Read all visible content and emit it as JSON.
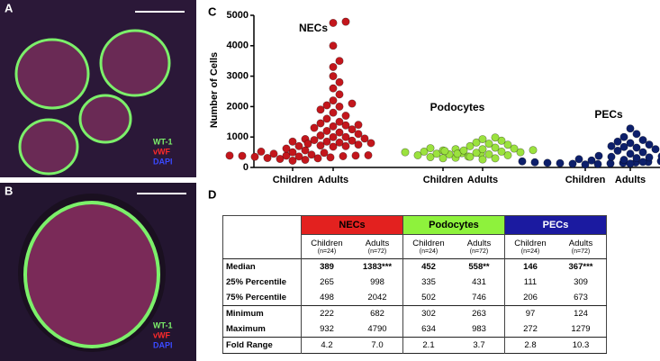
{
  "panels": [
    {
      "label": "A",
      "legend": [
        "WT-1",
        "vWF",
        "DAPI"
      ]
    },
    {
      "label": "B",
      "legend": [
        "WT-1",
        "vWF",
        "DAPI"
      ]
    }
  ],
  "chart_data": {
    "panel_label": "C",
    "type": "strip",
    "y_label": "Number of Cells",
    "categories": [
      "Children",
      "Adults"
    ],
    "ylim": [
      0,
      5000
    ],
    "yticks": [
      0,
      1000,
      2000,
      3000,
      4000,
      5000
    ],
    "series": [
      {
        "name": "NECs",
        "color": "#c3161c",
        "values": [
          [
            222,
            250,
            280,
            300,
            310,
            330,
            350,
            360,
            370,
            380,
            385,
            389,
            389,
            400,
            420,
            450,
            480,
            500,
            520,
            560,
            620,
            700,
            850,
            932
          ],
          [
            682,
            700,
            720,
            750,
            780,
            800,
            820,
            850,
            880,
            900,
            950,
            998,
            1000,
            1050,
            1100,
            1150,
            1200,
            1250,
            1300,
            1350,
            1383,
            1400,
            1450,
            1500,
            1600,
            1700,
            1800,
            1900,
            2000,
            2042,
            2100,
            2200,
            2400,
            2600,
            2800,
            3000,
            3300,
            3500,
            4000,
            4750,
            4790
          ]
        ]
      },
      {
        "name": "Podocytes",
        "color": "#9be23e",
        "values": [
          [
            302,
            320,
            340,
            360,
            400,
            430,
            452,
            452,
            470,
            500,
            520,
            560,
            600,
            634
          ],
          [
            263,
            300,
            350,
            400,
            431,
            450,
            480,
            500,
            520,
            540,
            558,
            570,
            600,
            620,
            650,
            700,
            746,
            780,
            820,
            880,
            930,
            983
          ]
        ]
      },
      {
        "name": "PECs",
        "color": "#0d1f6b",
        "values": [
          [
            97,
            110,
            120,
            130,
            140,
            146,
            150,
            160,
            170,
            180,
            200,
            206,
            230,
            272
          ],
          [
            124,
            180,
            250,
            309,
            330,
            350,
            367,
            380,
            400,
            450,
            500,
            550,
            600,
            650,
            673,
            700,
            750,
            800,
            850,
            900,
            1000,
            1100,
            1279
          ]
        ]
      }
    ]
  },
  "table": {
    "panel_label": "D",
    "groups": [
      {
        "name": "NECs",
        "color": "#e3211f"
      },
      {
        "name": "Podocytes",
        "color": "#8ef23c"
      },
      {
        "name": "PECs",
        "color": "#1b1aa0"
      }
    ],
    "columns": [
      {
        "label": "Children",
        "n": "(n=24)"
      },
      {
        "label": "Adults",
        "n": "(n=72)"
      },
      {
        "label": "Children",
        "n": "(n=24)"
      },
      {
        "label": "Adults",
        "n": "(n=72)"
      },
      {
        "label": "Children",
        "n": "(n=24)"
      },
      {
        "label": "Adults",
        "n": "(n=72)"
      }
    ],
    "rows": [
      {
        "label": "Median",
        "cells": [
          "389",
          "1383***",
          "452",
          "558**",
          "146",
          "367***"
        ]
      },
      {
        "label": "25% Percentile",
        "cells": [
          "265",
          "998",
          "335",
          "431",
          "111",
          "309"
        ]
      },
      {
        "label": "75% Percentile",
        "cells": [
          "498",
          "2042",
          "502",
          "746",
          "206",
          "673"
        ]
      },
      {
        "label": "Minimum",
        "cells": [
          "222",
          "682",
          "302",
          "263",
          "97",
          "124"
        ]
      },
      {
        "label": "Maximum",
        "cells": [
          "932",
          "4790",
          "634",
          "983",
          "272",
          "1279"
        ]
      },
      {
        "label": "Fold Range",
        "cells": [
          "4.2",
          "7.0",
          "2.1",
          "3.7",
          "2.8",
          "10.3"
        ]
      }
    ]
  }
}
